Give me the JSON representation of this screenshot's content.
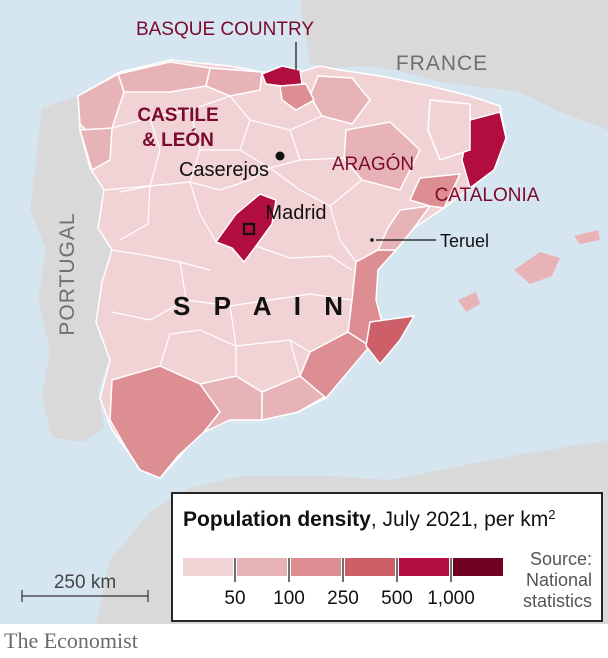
{
  "colors": {
    "sea": "#d6e6f0",
    "land_other": "#d9d9d9",
    "border": "#ffffff",
    "accent_red": "#e3120b",
    "label_dark": "#7a0a2e",
    "scale": [
      "#f2d3d5",
      "#e8b3b6",
      "#dc8e92",
      "#cd5f68",
      "#b10d3e",
      "#700321"
    ]
  },
  "labels": {
    "basque": "BASQUE COUNTRY",
    "france": "FRANCE",
    "castile_1": "CASTILE",
    "castile_2": "& LEÓN",
    "caserejos": "Caserejos",
    "aragon": "ARAGÓN",
    "catalonia": "CATALONIA",
    "madrid": "Madrid",
    "teruel": "Teruel",
    "portugal": "PORTUGAL",
    "spain": "S P A I N",
    "scale_bar": "250 km"
  },
  "legend": {
    "title_bold": "Population density",
    "title_rest": ", July 2021, per km",
    "title_sup": "2",
    "ticks": [
      "50",
      "100",
      "250",
      "500",
      "1,000"
    ],
    "source_lines": [
      "Source:",
      "National",
      "statistics"
    ]
  },
  "brand": "The Economist"
}
